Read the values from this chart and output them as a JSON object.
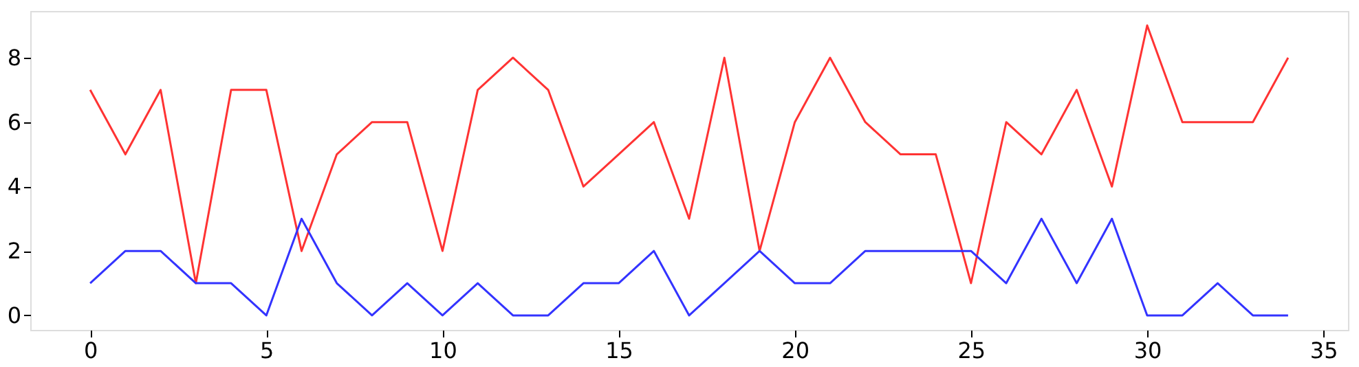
{
  "chart_data": {
    "type": "line",
    "x": [
      0,
      1,
      2,
      3,
      4,
      5,
      6,
      7,
      8,
      9,
      10,
      11,
      12,
      13,
      14,
      15,
      16,
      17,
      18,
      19,
      20,
      21,
      22,
      23,
      24,
      25,
      26,
      27,
      28,
      29,
      30,
      31,
      32,
      33,
      34
    ],
    "series": [
      {
        "color": "#ff3333",
        "values": [
          7,
          5,
          7,
          1,
          7,
          7,
          2,
          5,
          6,
          6,
          2,
          7,
          8,
          7,
          4,
          5,
          6,
          3,
          8,
          2,
          6,
          8,
          6,
          5,
          5,
          1,
          6,
          5,
          7,
          4,
          9,
          6,
          6,
          6,
          8
        ]
      },
      {
        "color": "#3333ff",
        "values": [
          1,
          2,
          2,
          1,
          1,
          0,
          3,
          1,
          0,
          1,
          0,
          1,
          0,
          0,
          1,
          1,
          2,
          0,
          1,
          2,
          1,
          1,
          2,
          2,
          2,
          2,
          1,
          3,
          1,
          3,
          0,
          0,
          1,
          0,
          0
        ]
      }
    ],
    "xlim": [
      -1.7,
      35.7
    ],
    "xticks": [
      0,
      5,
      10,
      15,
      20,
      25,
      30,
      35
    ],
    "ylim": [
      -0.45,
      9.45
    ],
    "yticks": [
      0,
      2,
      4,
      6,
      8
    ],
    "grid": false,
    "marker": "none",
    "line_style": "solid"
  }
}
